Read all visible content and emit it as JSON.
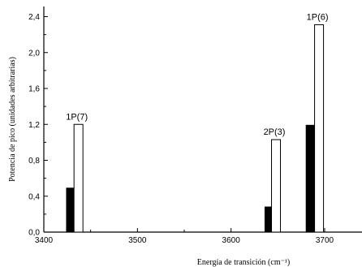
{
  "chart_data": {
    "type": "bar",
    "title": "",
    "xlabel": "Energía de transición (cm⁻¹)",
    "ylabel": "Potencia de pico (unidades arbitrarias)",
    "xlim": [
      3400,
      3740
    ],
    "ylim": [
      0,
      2.5
    ],
    "xticks": [
      3400,
      3500,
      3600,
      3700
    ],
    "yticks": [
      0,
      0.4,
      0.8,
      1.2,
      1.6,
      2.0,
      2.4
    ],
    "ytick_labels": [
      "0,0",
      "0,4",
      "0,8",
      "1,2",
      "1,6",
      "2,0",
      "2,4"
    ],
    "grid": false,
    "series": [
      {
        "color": "#000000",
        "fill": "solid"
      },
      {
        "color": "#ffffff",
        "fill": "open"
      }
    ],
    "groups": [
      {
        "label": "1P(7)",
        "values": [
          0.49,
          1.2
        ],
        "x": [
          3429,
          3437
        ]
      },
      {
        "label": "2P(3)",
        "values": [
          0.28,
          1.03
        ],
        "x": [
          3641,
          3648
        ]
      },
      {
        "label": "1P(6)",
        "values": [
          1.19,
          2.31
        ],
        "x": [
          3685,
          3694
        ]
      }
    ]
  }
}
